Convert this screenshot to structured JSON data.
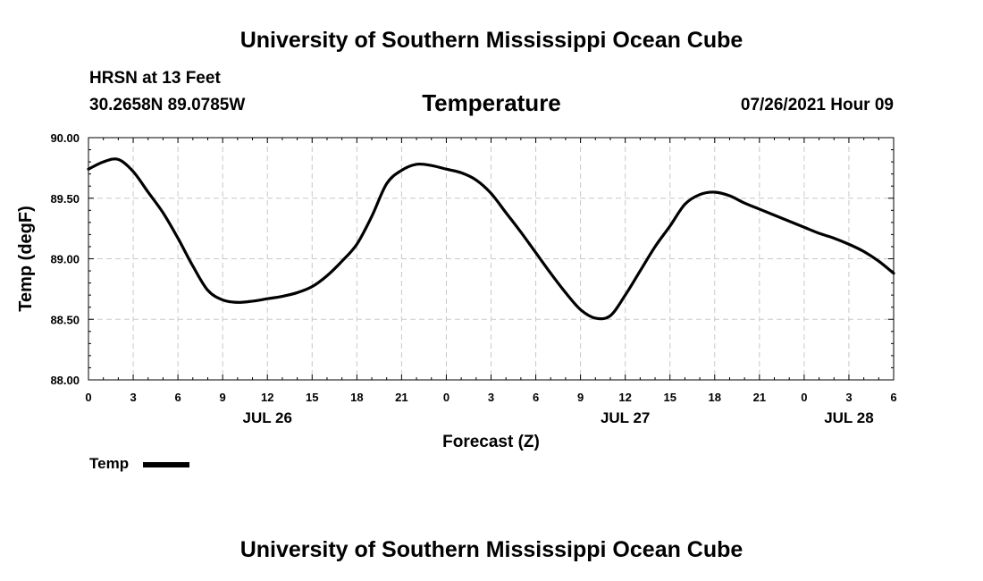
{
  "header": {
    "title_top": "University of Southern Mississippi Ocean Cube",
    "title_bottom": "University of Southern Mississippi Ocean Cube",
    "station": "HRSN at 13 Feet",
    "coords": "30.2658N  89.0785W",
    "chart_title": "Temperature",
    "timestamp": "07/26/2021 Hour 09"
  },
  "legend": {
    "label": "Temp"
  },
  "chart_data": {
    "type": "line",
    "title": "Temperature",
    "xlabel": "Forecast (Z)",
    "ylabel": "Temp (degF)",
    "x_unit": "forecast hour (Z)",
    "x_range": [
      0,
      54
    ],
    "ylim": [
      88.0,
      90.0
    ],
    "y_ticks": [
      "88.00",
      "88.50",
      "89.00",
      "89.50",
      "90.00"
    ],
    "x_ticks": [
      {
        "x": 0,
        "label": "0"
      },
      {
        "x": 3,
        "label": "3"
      },
      {
        "x": 6,
        "label": "6"
      },
      {
        "x": 9,
        "label": "9"
      },
      {
        "x": 12,
        "label": "12"
      },
      {
        "x": 15,
        "label": "15"
      },
      {
        "x": 18,
        "label": "18"
      },
      {
        "x": 21,
        "label": "21"
      },
      {
        "x": 24,
        "label": "0"
      },
      {
        "x": 27,
        "label": "3"
      },
      {
        "x": 30,
        "label": "6"
      },
      {
        "x": 33,
        "label": "9"
      },
      {
        "x": 36,
        "label": "12"
      },
      {
        "x": 39,
        "label": "15"
      },
      {
        "x": 42,
        "label": "18"
      },
      {
        "x": 45,
        "label": "21"
      },
      {
        "x": 48,
        "label": "0"
      },
      {
        "x": 51,
        "label": "3"
      },
      {
        "x": 54,
        "label": "6"
      }
    ],
    "date_labels": [
      {
        "x": 12,
        "label": "JUL 26"
      },
      {
        "x": 36,
        "label": "JUL 27"
      },
      {
        "x": 51,
        "label": "JUL 28"
      }
    ],
    "grid": true,
    "legend_position": "bottom-left",
    "series": [
      {
        "name": "Temp",
        "color": "#000000",
        "x": [
          0,
          1,
          2,
          3,
          4,
          5,
          6,
          7,
          8,
          9,
          10,
          11,
          12,
          13,
          14,
          15,
          16,
          17,
          18,
          19,
          20,
          21,
          22,
          23,
          24,
          25,
          26,
          27,
          28,
          29,
          30,
          31,
          32,
          33,
          34,
          35,
          36,
          37,
          38,
          39,
          40,
          41,
          42,
          43,
          44,
          45,
          46,
          47,
          48,
          49,
          50,
          51,
          52,
          53,
          54
        ],
        "y": [
          89.74,
          89.8,
          89.82,
          89.72,
          89.55,
          89.38,
          89.17,
          88.94,
          88.74,
          88.66,
          88.64,
          88.65,
          88.67,
          88.69,
          88.72,
          88.77,
          88.86,
          88.98,
          89.12,
          89.35,
          89.62,
          89.73,
          89.78,
          89.77,
          89.74,
          89.71,
          89.65,
          89.54,
          89.38,
          89.22,
          89.05,
          88.88,
          88.72,
          88.58,
          88.51,
          88.53,
          88.7,
          88.9,
          89.1,
          89.27,
          89.45,
          89.53,
          89.55,
          89.52,
          89.46,
          89.41,
          89.36,
          89.31,
          89.26,
          89.21,
          89.17,
          89.12,
          89.06,
          88.98,
          88.88
        ]
      }
    ]
  }
}
